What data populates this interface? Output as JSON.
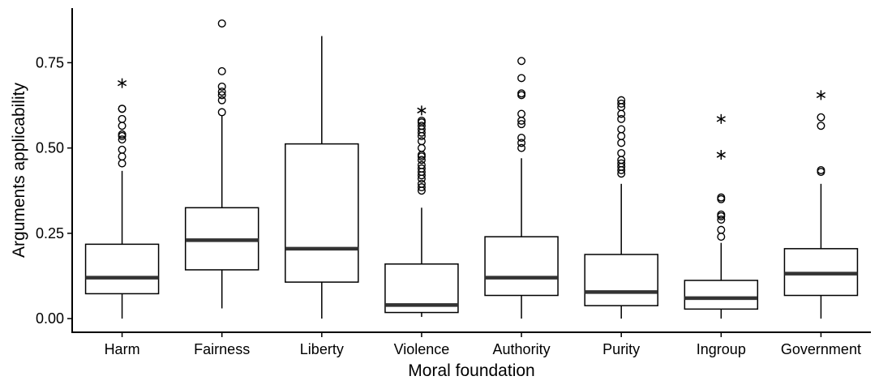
{
  "chart_data": {
    "type": "boxplot",
    "xlabel": "Moral foundation",
    "ylabel": "Arguments applicability",
    "ylim": [
      -0.04,
      0.91
    ],
    "yticks": [
      0.0,
      0.25,
      0.5,
      0.75
    ],
    "ytick_labels": [
      "0.00",
      "0.25",
      "0.50",
      "0.75"
    ],
    "grid": false,
    "categories": [
      "Harm",
      "Fairness",
      "Liberty",
      "Violence",
      "Authority",
      "Purity",
      "Ingroup",
      "Government"
    ],
    "boxes": [
      {
        "category": "Harm",
        "min": 0.0,
        "q1": 0.073,
        "median": 0.12,
        "q3": 0.218,
        "max": 0.433,
        "outliers": [
          0.455,
          0.475,
          0.495,
          0.525,
          0.535,
          0.54,
          0.565,
          0.585,
          0.615,
          0.615
        ],
        "extremes": [
          0.69
        ]
      },
      {
        "category": "Fairness",
        "min": 0.03,
        "q1": 0.143,
        "median": 0.23,
        "q3": 0.325,
        "max": 0.595,
        "outliers": [
          0.605,
          0.64,
          0.655,
          0.665,
          0.68,
          0.725,
          0.865
        ],
        "extremes": []
      },
      {
        "category": "Liberty",
        "min": 0.0,
        "q1": 0.107,
        "median": 0.205,
        "q3": 0.512,
        "max": 0.828,
        "outliers": [],
        "extremes": []
      },
      {
        "category": "Violence",
        "min": 0.005,
        "q1": 0.018,
        "median": 0.04,
        "q3": 0.16,
        "max": 0.325,
        "outliers": [
          0.375,
          0.385,
          0.395,
          0.41,
          0.42,
          0.43,
          0.44,
          0.45,
          0.465,
          0.475,
          0.48,
          0.5,
          0.52,
          0.535,
          0.545,
          0.555,
          0.565,
          0.575,
          0.58
        ],
        "extremes": [
          0.61
        ]
      },
      {
        "category": "Authority",
        "min": 0.0,
        "q1": 0.068,
        "median": 0.12,
        "q3": 0.24,
        "max": 0.47,
        "outliers": [
          0.5,
          0.515,
          0.53,
          0.57,
          0.58,
          0.6,
          0.655,
          0.66,
          0.705,
          0.755
        ],
        "extremes": []
      },
      {
        "category": "Purity",
        "min": 0.0,
        "q1": 0.038,
        "median": 0.078,
        "q3": 0.188,
        "max": 0.395,
        "outliers": [
          0.425,
          0.435,
          0.445,
          0.455,
          0.465,
          0.485,
          0.515,
          0.535,
          0.555,
          0.585,
          0.6,
          0.62,
          0.63,
          0.64
        ],
        "extremes": []
      },
      {
        "category": "Ingroup",
        "min": 0.0,
        "q1": 0.028,
        "median": 0.06,
        "q3": 0.112,
        "max": 0.222,
        "outliers": [
          0.24,
          0.26,
          0.29,
          0.3,
          0.305,
          0.35,
          0.355
        ],
        "extremes": [
          0.48,
          0.585
        ]
      },
      {
        "category": "Government",
        "min": 0.0,
        "q1": 0.068,
        "median": 0.132,
        "q3": 0.205,
        "max": 0.395,
        "outliers": [
          0.43,
          0.435,
          0.565,
          0.59
        ],
        "extremes": [
          0.655
        ]
      }
    ]
  }
}
